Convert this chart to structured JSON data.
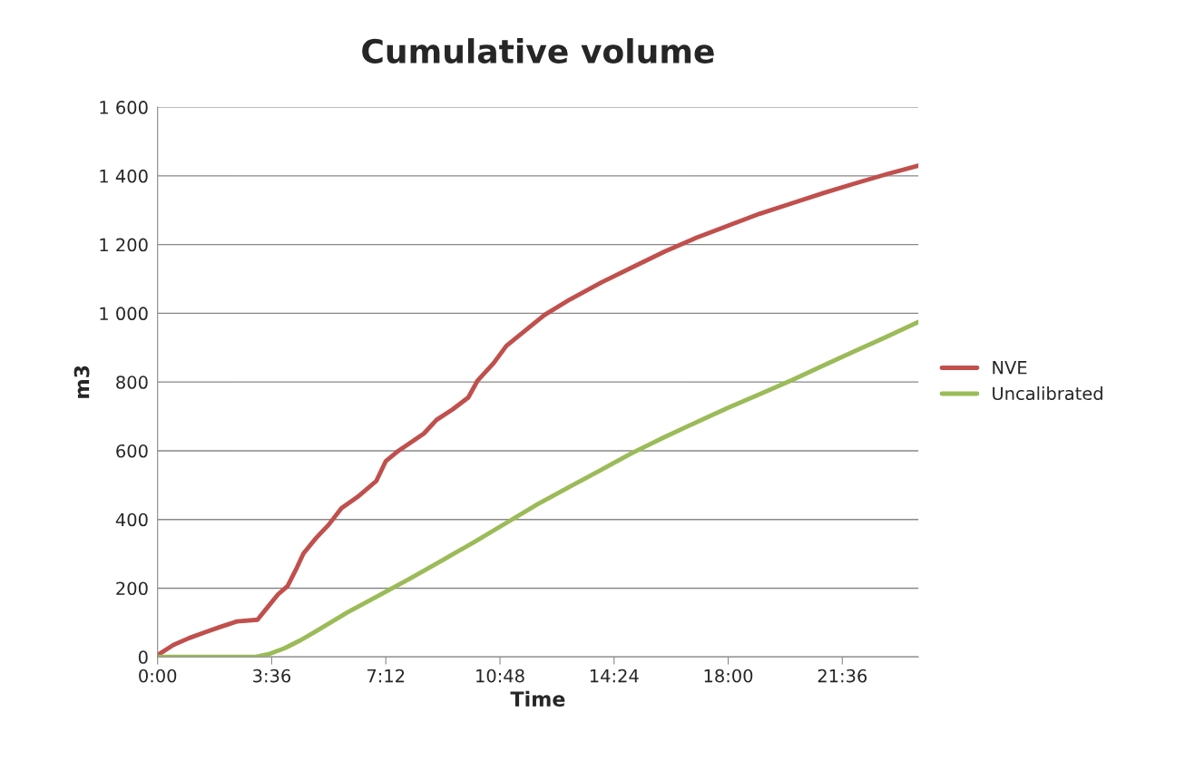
{
  "chart_data": {
    "type": "line",
    "title": "Cumulative volume",
    "xlabel": "Time",
    "ylabel": "m3",
    "xlim": [
      0,
      24
    ],
    "xticks": [
      {
        "value": 0,
        "label": "0:00"
      },
      {
        "value": 3.6,
        "label": "3:36"
      },
      {
        "value": 7.2,
        "label": "7:12"
      },
      {
        "value": 10.8,
        "label": "10:48"
      },
      {
        "value": 14.4,
        "label": "14:24"
      },
      {
        "value": 18,
        "label": "18:00"
      },
      {
        "value": 21.6,
        "label": "21:36"
      }
    ],
    "ylim": [
      0,
      1600
    ],
    "yticks": [
      0,
      200,
      400,
      600,
      800,
      {
        "value": 1000,
        "label": "1 000"
      },
      {
        "value": 1200,
        "label": "1 200"
      },
      {
        "value": 1400,
        "label": "1 400"
      },
      {
        "value": 1600,
        "label": "1 600"
      }
    ],
    "grid": "y",
    "legend": "right",
    "marker": "none",
    "line_style": "solid",
    "series": [
      {
        "name": "NVE",
        "color": "#c0504d",
        "x": [
          0,
          0.5,
          1,
          1.5,
          2,
          2.5,
          3.15,
          3.5,
          3.8,
          4.1,
          4.4,
          4.6,
          5.0,
          5.4,
          5.8,
          6.3,
          6.9,
          7.2,
          7.6,
          8.4,
          8.8,
          9.3,
          9.8,
          10.1,
          10.6,
          11.0,
          11.6,
          12.2,
          13,
          14,
          15,
          16,
          17,
          18,
          19,
          20,
          21,
          22,
          23,
          24
        ],
        "values": [
          5,
          35,
          55,
          72,
          88,
          103,
          108,
          148,
          182,
          206,
          261,
          301,
          346,
          385,
          433,
          465,
          512,
          570,
          600,
          650,
          690,
          720,
          755,
          805,
          855,
          905,
          950,
          995,
          1040,
          1090,
          1135,
          1180,
          1220,
          1255,
          1290,
          1320,
          1350,
          1378,
          1405,
          1430
        ]
      },
      {
        "name": "Uncalibrated",
        "color": "#9bbb59",
        "x": [
          0,
          3.1,
          3.5,
          4,
          4.5,
          5,
          6,
          7,
          8,
          9,
          10,
          11,
          12,
          13,
          14,
          15,
          16,
          17,
          18,
          19,
          20,
          21,
          22,
          23,
          24
        ],
        "values": [
          0,
          0,
          8,
          25,
          48,
          75,
          130,
          180,
          230,
          282,
          335,
          390,
          445,
          495,
          545,
          595,
          640,
          683,
          725,
          765,
          805,
          848,
          890,
          932,
          975
        ]
      }
    ]
  }
}
